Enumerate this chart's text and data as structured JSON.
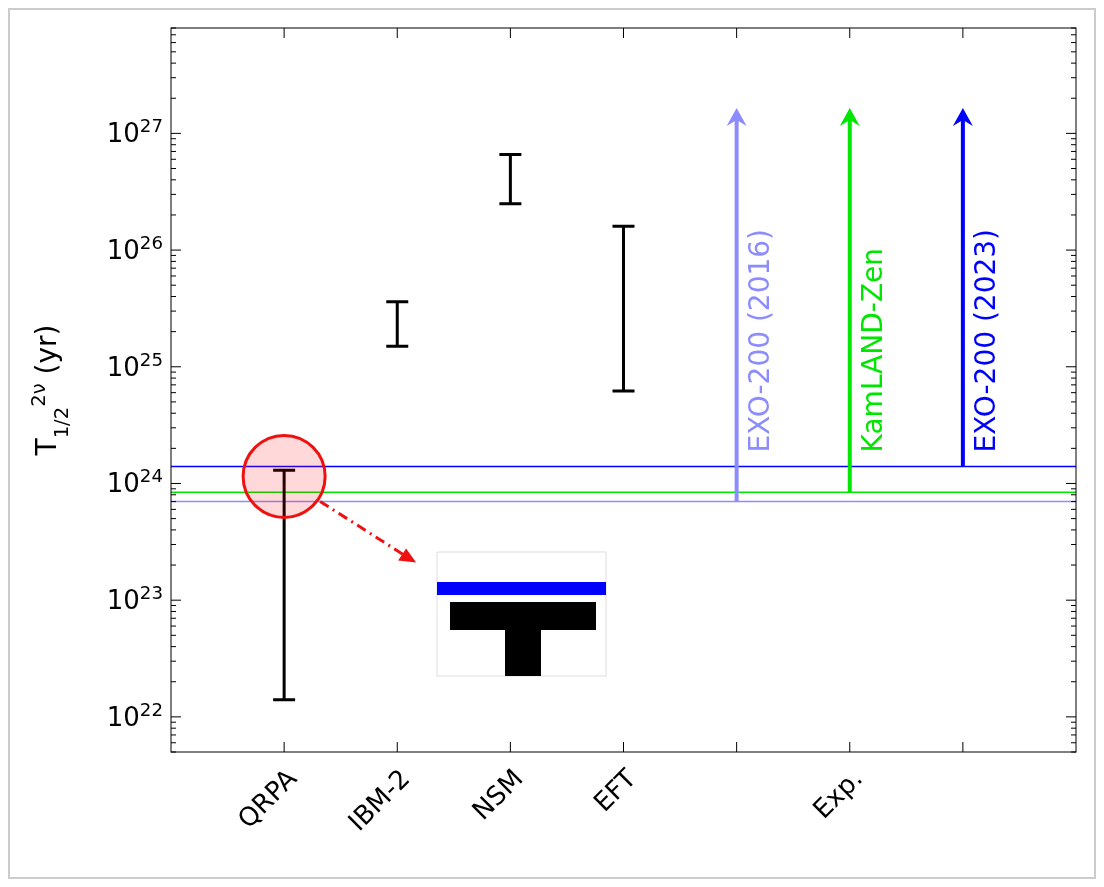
{
  "chart_data": {
    "type": "bar",
    "ylabel": "T$_{1/2}$$^{2ν}$ (yr)",
    "log": true,
    "categories": [
      "QRPA",
      "IBM-2",
      "NSM",
      "EFT",
      null,
      "Exp.",
      null
    ],
    "base": [
      1.4e+22,
      1.5e+25,
      2.5e+26,
      6.2e+24,
      null,
      null,
      null
    ],
    "values": [
      1.286e+24,
      2.1e+25,
      4.1e+26,
      1.538e+26,
      null,
      null,
      null
    ],
    "color": "#000000",
    "ylim": [
      5e+21,
      8e+27
    ],
    "yticks": [
      {
        "value": 1e+22,
        "label": "10$^{22}$"
      },
      {
        "value": 1e+23,
        "label": "10$^{23}$"
      },
      {
        "value": 1e+24,
        "label": "10$^{24}$"
      },
      {
        "value": 1e+25,
        "label": "10$^{25}$"
      },
      {
        "value": 1e+26,
        "label": "10$^{26}$"
      },
      {
        "value": 1e+27,
        "label": "10$^{27}$"
      }
    ],
    "ref_lines": [
      {
        "axis": "y",
        "value": 7e+23,
        "label": "EXO-200 (2016)",
        "color": "#8c8cff"
      },
      {
        "axis": "y",
        "value": 8.4e+23,
        "label": "KamLAND-Zen",
        "color": "#00e600"
      },
      {
        "axis": "y",
        "value": 1.4e+24,
        "label": "EXO-200 (2023)",
        "color": "#0000ff"
      }
    ]
  }
}
